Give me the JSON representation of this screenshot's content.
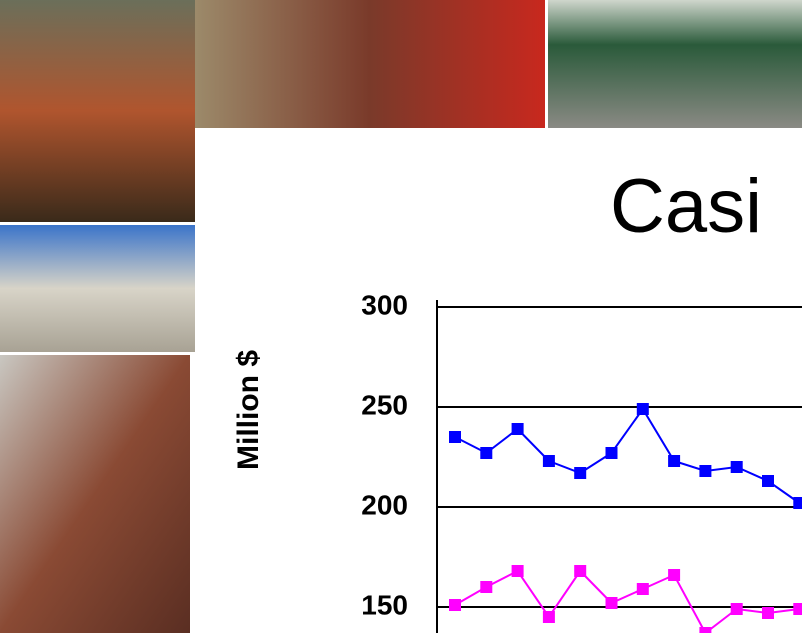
{
  "chart_data": {
    "type": "line",
    "title": "Casi",
    "y_label": "Million $",
    "categories": [
      null,
      null,
      null,
      null,
      null,
      null,
      null,
      null,
      null,
      null,
      null,
      null
    ],
    "series": [
      {
        "color": "#0000ff",
        "values": [
          235,
          227,
          239,
          223,
          217,
          227,
          249,
          223,
          218,
          220,
          213,
          202
        ]
      },
      {
        "color": "#ff00ff",
        "values": [
          151,
          160,
          168,
          145,
          168,
          152,
          159,
          166,
          137,
          149,
          147,
          149
        ]
      }
    ],
    "ylim": [
      100,
      300
    ],
    "yticks": [
      150,
      200,
      250,
      300
    ],
    "grid": true
  }
}
